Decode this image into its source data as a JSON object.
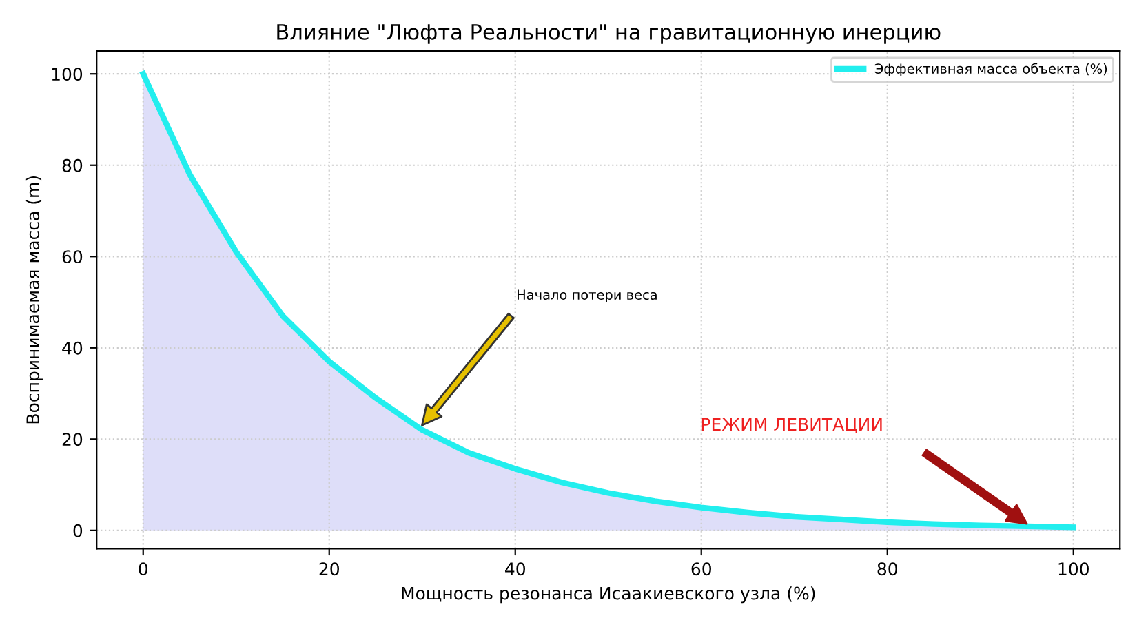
{
  "chart_data": {
    "type": "area",
    "title": "Влияние \"Люфта Реальности\" на гравитационную инерцию",
    "xlabel": "Мощность резонанса Исаакиевского узла (%)",
    "ylabel": "Воспринимаемая масса (m)",
    "x": [
      0,
      5,
      10,
      15,
      20,
      25,
      30,
      35,
      40,
      45,
      50,
      55,
      60,
      65,
      70,
      75,
      80,
      85,
      90,
      95,
      100
    ],
    "series": [
      {
        "name": "Эффективная масса объекта (%)",
        "color": "#22eeee",
        "values": [
          100,
          78,
          61,
          47,
          37,
          29,
          22,
          17,
          13.5,
          10.5,
          8.2,
          6.4,
          5,
          3.9,
          3,
          2.4,
          1.8,
          1.4,
          1.1,
          0.9,
          0.7
        ]
      }
    ],
    "annotations": [
      "Начало потери веса",
      "РЕЖИМ ЛЕВИТАЦИИ"
    ],
    "xlim": [
      -5,
      105
    ],
    "ylim": [
      -4,
      105
    ],
    "xticks": [
      0,
      20,
      40,
      60,
      80,
      100
    ],
    "yticks": [
      0,
      20,
      40,
      60,
      80,
      100
    ],
    "grid": true,
    "legend": "top right",
    "line_style": "solid",
    "marker": "none"
  }
}
